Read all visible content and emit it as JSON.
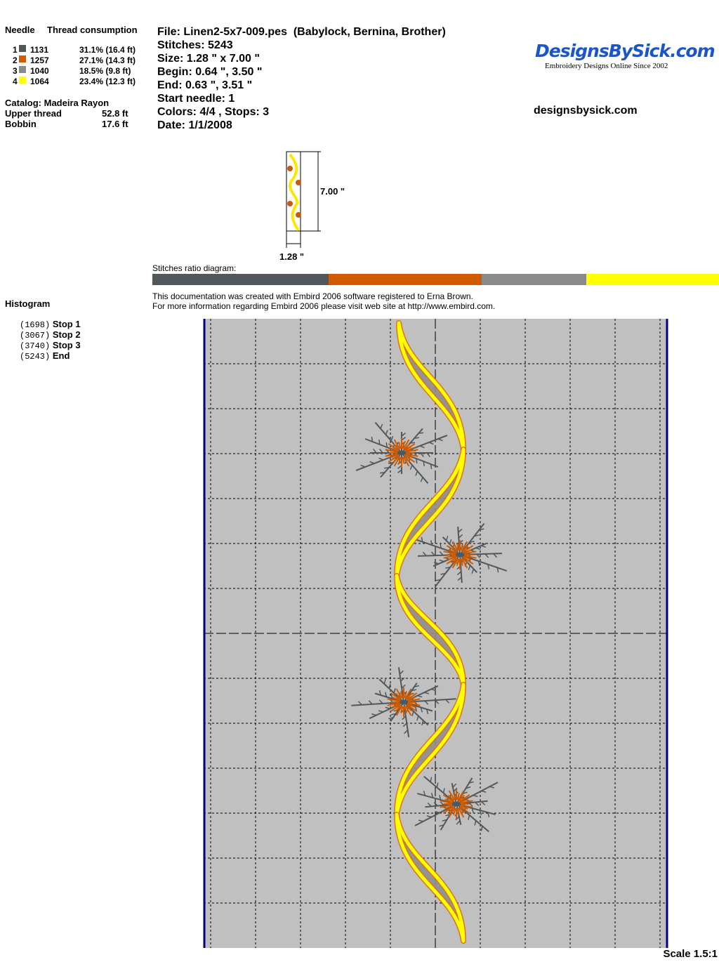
{
  "legend": {
    "needle_header": "Needle",
    "thread_header": "Thread consumption",
    "needles": [
      {
        "num": "1",
        "code": "1131",
        "consumption": "31.1% (16.4 ft)",
        "color": "#50585c"
      },
      {
        "num": "2",
        "code": "1257",
        "consumption": "27.1% (14.3 ft)",
        "color": "#d05a00"
      },
      {
        "num": "3",
        "code": "1040",
        "consumption": "18.5% (9.8 ft)",
        "color": "#8a8a8a"
      },
      {
        "num": "4",
        "code": "1064",
        "consumption": "23.4% (12.3 ft)",
        "color": "#ffff00"
      }
    ],
    "catalog": "Catalog: Madeira Rayon",
    "upper_label": "Upper thread",
    "upper_value": "52.8 ft",
    "bobbin_label": "Bobbin",
    "bobbin_value": "17.6 ft"
  },
  "info": {
    "file": "File: Linen2-5x7-009.pes  (Babylock, Bernina, Brother)",
    "stitches": "Stitches: 5243",
    "size": "Size: 1.28 \" x 7.00 \"",
    "begin": "Begin: 0.64 \", 3.50 \"",
    "end": "End: 0.63 \", 3.51 \"",
    "start_needle": "Start needle: 1",
    "colors": "Colors: 4/4 , Stops: 3",
    "date": "Date: 1/1/2008"
  },
  "brand": {
    "logo": "DesignsBySick.com",
    "tagline": "Embroidery Designs Online Since 2002",
    "site": "designsbysick.com"
  },
  "thumbnail": {
    "height_label": "7.00 \"",
    "width_label": "1.28 \""
  },
  "ratio": {
    "label": "Stitches ratio diagram:",
    "segments": [
      31.1,
      27.1,
      18.5,
      23.4
    ]
  },
  "notice": {
    "line1": "This documentation was created with Embird 2006 software registered to Erna Brown.",
    "line2": "For more information regarding Embird 2006 please visit web site at http://www.embird.com."
  },
  "histogram": {
    "title": "Histogram",
    "stops": [
      {
        "count": "(1698)",
        "label": "Stop 1"
      },
      {
        "count": "(3067)",
        "label": "Stop 2"
      },
      {
        "count": "(3740)",
        "label": "Stop 3"
      },
      {
        "count": "(5243)",
        "label": "End"
      }
    ]
  },
  "preview": {
    "scale": "Scale 1.5:1",
    "background": "#c0c0c0",
    "frame_color": "#000080"
  }
}
